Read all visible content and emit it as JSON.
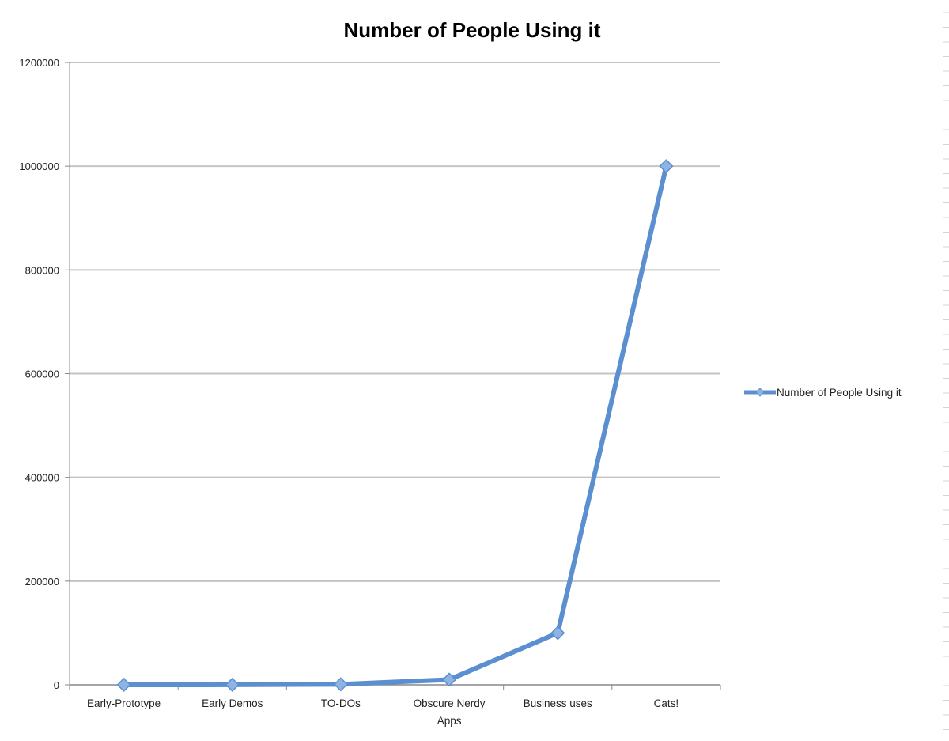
{
  "chart_data": {
    "type": "line",
    "title": "Number of People Using it",
    "xlabel": "",
    "ylabel": "",
    "categories": [
      [
        "Early-Prototype"
      ],
      [
        "Early Demos"
      ],
      [
        "TO-DOs"
      ],
      [
        "Obscure Nerdy",
        "Apps"
      ],
      [
        "Business uses"
      ],
      [
        "Cats!"
      ]
    ],
    "series": [
      {
        "name": "Number of People Using it",
        "values": [
          10,
          100,
          1000,
          10000,
          100000,
          1000000
        ],
        "color": "#5b8fcf"
      }
    ],
    "ylim": [
      0,
      1200000
    ],
    "yticks": [
      0,
      200000,
      400000,
      600000,
      800000,
      1000000,
      1200000
    ],
    "ytick_labels": [
      "0",
      "200000",
      "400000",
      "600000",
      "800000",
      "1000000",
      "1200000"
    ],
    "grid": true,
    "legend_position": "right",
    "marker": "diamond"
  }
}
